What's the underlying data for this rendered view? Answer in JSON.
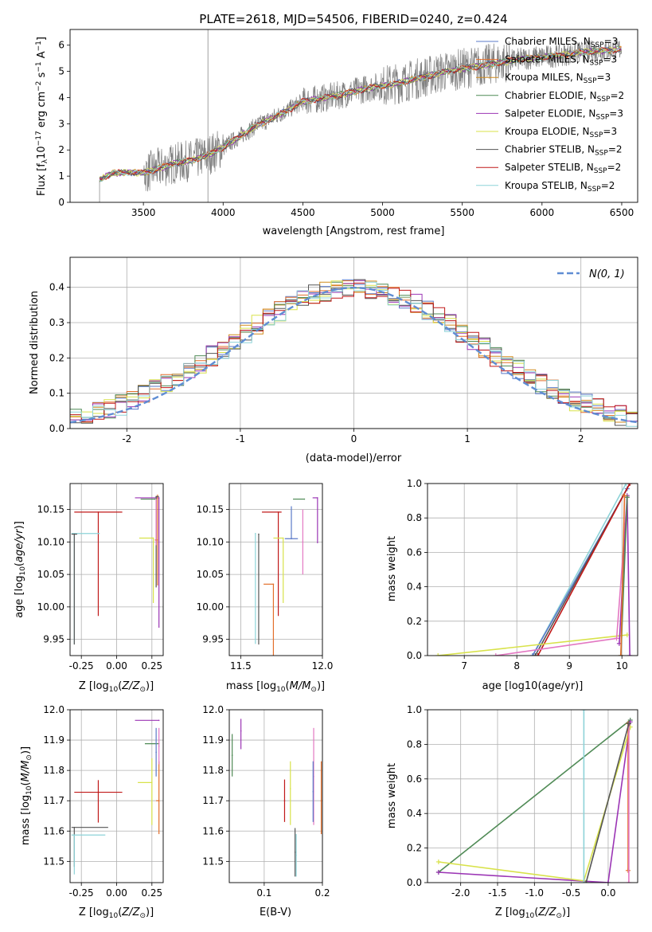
{
  "figure": {
    "title": "PLATE=2618, MJD=54506, FIBERID=0240, z=0.424"
  },
  "legend_labels": [
    {
      "name": "Chabrier MILES, N",
      "sub": "SSP",
      "suffix": "=3",
      "color": "#5b7ac8"
    },
    {
      "name": "Salpeter MILES, N",
      "sub": "SSP",
      "suffix": "=3",
      "color": "#e36f2b"
    },
    {
      "name": "Kroupa MILES, N",
      "sub": "SSP",
      "suffix": "=3",
      "color": "#d08a1c"
    },
    {
      "name": "Chabrier ELODIE, N",
      "sub": "SSP",
      "suffix": "=2",
      "color": "#4f8a55"
    },
    {
      "name": "Salpeter ELODIE, N",
      "sub": "SSP",
      "suffix": "=3",
      "color": "#9b35b5"
    },
    {
      "name": "Kroupa ELODIE, N",
      "sub": "SSP",
      "suffix": "=3",
      "color": "#d8e24a"
    },
    {
      "name": "Chabrier STELIB, N",
      "sub": "SSP",
      "suffix": "=2",
      "color": "#555555"
    },
    {
      "name": "Salpeter STELIB, N",
      "sub": "SSP",
      "suffix": "=2",
      "color": "#c01818"
    },
    {
      "name": "Kroupa STELIB, N",
      "sub": "SSP",
      "suffix": "=2",
      "color": "#8dd3d8"
    }
  ],
  "chart_data": [
    {
      "type": "line",
      "ylabel": "Flux [f_λ 10^-17 erg cm^-2 s^-1 A^-1]",
      "xlabel": "wavelength [Angstrom, rest frame]",
      "xlim": [
        3040,
        6600
      ],
      "ylim": [
        0,
        6.6
      ],
      "xticks": [
        3500,
        4000,
        4500,
        5000,
        5500,
        6000,
        6500
      ],
      "yticks": [
        0,
        1,
        2,
        3,
        4,
        5,
        6
      ],
      "data_color": "#808080",
      "vline": 3905,
      "model_curve": {
        "x": [
          3220,
          3300,
          3400,
          3500,
          3600,
          3700,
          3800,
          3900,
          4000,
          4100,
          4200,
          4300,
          4400,
          4500,
          4600,
          4700,
          4800,
          4900,
          5000,
          5100,
          5200,
          5300,
          5400,
          5500,
          5600,
          5700,
          5800,
          5900,
          6000,
          6100,
          6200,
          6300,
          6400,
          6500
        ],
        "y": [
          0.85,
          1.1,
          1.15,
          1.12,
          1.3,
          1.5,
          1.6,
          1.8,
          2.1,
          2.5,
          2.9,
          3.2,
          3.5,
          3.85,
          3.95,
          4.05,
          4.2,
          4.35,
          4.45,
          4.55,
          4.7,
          4.85,
          5.0,
          5.1,
          5.2,
          5.3,
          5.4,
          5.5,
          5.55,
          5.6,
          5.7,
          5.75,
          5.8,
          5.85
        ]
      }
    },
    {
      "type": "histogram",
      "xlabel": "(data-model)/error",
      "ylabel": "Normed distribution",
      "xlim": [
        -2.5,
        2.5
      ],
      "ylim": [
        0,
        0.485
      ],
      "xticks": [
        -2,
        -1,
        0,
        1,
        2
      ],
      "yticks": [
        0.0,
        0.1,
        0.2,
        0.3,
        0.4
      ],
      "reference_label": "N(0, 1)",
      "reference_color": "#5f8dd3",
      "bin_width": 0.1
    },
    {
      "type": "errorbar",
      "xlabel": "Z [log10(Z/Z⊙)]",
      "ylabel": "age  [log10(age/yr)]",
      "xlim": [
        -0.33,
        0.33
      ],
      "ylim": [
        9.925,
        10.19
      ],
      "xticks": [
        -0.25,
        0.0,
        0.25
      ],
      "yticks": [
        9.95,
        10.0,
        10.05,
        10.1,
        10.15
      ],
      "points": [
        {
          "x": -0.13,
          "y": 10.146,
          "xerr": [
            0.17,
            0.17
          ],
          "yerr": [
            0.16,
            0.0
          ],
          "color": "#c01818"
        },
        {
          "x": -0.3,
          "y": 10.113,
          "xerr": [
            0.02,
            0.18
          ],
          "yerr": [
            0.17,
            0.0
          ],
          "color": "#8dd3d8"
        },
        {
          "x": -0.3,
          "y": 10.112,
          "xerr": [
            0.02,
            0.02
          ],
          "yerr": [
            0.17,
            0.0
          ],
          "color": "#555555"
        },
        {
          "x": 0.3,
          "y": 10.168,
          "xerr": [
            0.17,
            0.0
          ],
          "yerr": [
            0.2,
            0.0
          ],
          "color": "#9b35b5"
        },
        {
          "x": 0.27,
          "y": 10.166,
          "xerr": [
            0.1,
            0.0
          ],
          "yerr": [
            0.0,
            0.0
          ],
          "color": "#4f8a55"
        },
        {
          "x": 0.26,
          "y": 10.106,
          "xerr": [
            0.1,
            0.0
          ],
          "yerr": [
            0.1,
            0.0
          ],
          "color": "#d8e24a"
        },
        {
          "x": 0.29,
          "y": 10.103,
          "xerr": [
            0.02,
            0.0
          ],
          "yerr": [
            0.07,
            0.07
          ],
          "color": "#e36f2b"
        },
        {
          "x": 0.28,
          "y": 10.17,
          "xerr": [
            0.0,
            0.02
          ],
          "yerr": [
            0.14,
            0.0
          ],
          "color": "#555555"
        },
        {
          "x": 0.28,
          "y": 10.165,
          "xerr": [
            0.0,
            0.0
          ],
          "yerr": [
            0.07,
            0.0
          ],
          "color": "#e377c2"
        }
      ]
    },
    {
      "type": "errorbar",
      "xlabel": "mass [log10(M/M⊙)]",
      "ylabel": "",
      "xlim": [
        11.43,
        12.0
      ],
      "ylim": [
        9.925,
        10.19
      ],
      "xticks": [
        11.5,
        12.0
      ],
      "yticks": [
        9.95,
        10.0,
        10.05,
        10.1,
        10.15
      ],
      "points": [
        {
          "x": 11.73,
          "y": 10.146,
          "xerr": [
            0.1,
            0.02
          ],
          "yerr": [
            0.16,
            0.0
          ],
          "color": "#c01818"
        },
        {
          "x": 11.59,
          "y": 10.113,
          "xerr": [
            0.0,
            0.0
          ],
          "yerr": [
            0.17,
            0.0
          ],
          "color": "#8dd3d8"
        },
        {
          "x": 11.61,
          "y": 10.112,
          "xerr": [
            0.0,
            0.0
          ],
          "yerr": [
            0.17,
            0.0
          ],
          "color": "#555555"
        },
        {
          "x": 11.97,
          "y": 10.168,
          "xerr": [
            0.03,
            0.0
          ],
          "yerr": [
            0.07,
            0.0
          ],
          "color": "#9b35b5"
        },
        {
          "x": 11.89,
          "y": 10.166,
          "xerr": [
            0.07,
            0.0
          ],
          "yerr": [
            0.0,
            0.0
          ],
          "color": "#4f8a55"
        },
        {
          "x": 11.76,
          "y": 10.106,
          "xerr": [
            0.06,
            0.0
          ],
          "yerr": [
            0.1,
            0.0
          ],
          "color": "#d8e24a"
        },
        {
          "x": 11.7,
          "y": 10.035,
          "xerr": [
            0.06,
            0.0
          ],
          "yerr": [
            0.11,
            0.0
          ],
          "color": "#e36f2b"
        },
        {
          "x": 11.81,
          "y": 10.105,
          "xerr": [
            0.04,
            0.04
          ],
          "yerr": [
            0.0,
            0.05
          ],
          "color": "#5b7ac8"
        },
        {
          "x": 11.88,
          "y": 10.1,
          "xerr": [
            0.0,
            0.0
          ],
          "yerr": [
            0.05,
            0.05
          ],
          "color": "#e377c2"
        }
      ]
    },
    {
      "type": "line",
      "xlabel": "age  [log10(age/yr)]",
      "ylabel": "mass weight",
      "xlim": [
        6.3,
        10.3
      ],
      "ylim": [
        0.0,
        1.0
      ],
      "xticks": [
        7,
        8,
        9,
        10
      ],
      "yticks": [
        0.0,
        0.2,
        0.4,
        0.6,
        0.8,
        1.0
      ],
      "series": [
        {
          "x": [
            8.3,
            10.08
          ],
          "y": [
            0.0,
            1.0
          ],
          "color": "#8dd3d8"
        },
        {
          "x": [
            8.3,
            10.1
          ],
          "y": [
            0.0,
            0.97
          ],
          "color": "#5b7ac8"
        },
        {
          "x": [
            8.35,
            10.15
          ],
          "y": [
            0.0,
            1.0
          ],
          "color": "#555555"
        },
        {
          "x": [
            8.4,
            10.15
          ],
          "y": [
            0.0,
            1.0
          ],
          "color": "#c01818"
        },
        {
          "x": [
            6.5,
            10.1
          ],
          "y": [
            0.0,
            0.12
          ],
          "color": "#d8e24a"
        },
        {
          "x": [
            7.6,
            9.9,
            10.1
          ],
          "y": [
            0.0,
            0.1,
            0.92
          ],
          "color": "#e377c2"
        },
        {
          "x": [
            9.95,
            10.1,
            10.15
          ],
          "y": [
            0.07,
            0.93,
            0.0
          ],
          "color": "#9b35b5"
        },
        {
          "x": [
            9.98,
            10.1
          ],
          "y": [
            0.0,
            0.92
          ],
          "color": "#4f8a55"
        },
        {
          "x": [
            9.98,
            10.05
          ],
          "y": [
            0.0,
            0.93
          ],
          "color": "#e36f2b"
        }
      ]
    },
    {
      "type": "errorbar",
      "xlabel": "Z [log10(Z/Z⊙)]",
      "ylabel": "mass [log10(M/M⊙)]",
      "xlim": [
        -0.33,
        0.33
      ],
      "ylim": [
        11.43,
        12.0
      ],
      "xticks": [
        -0.25,
        0.0,
        0.25
      ],
      "yticks": [
        11.5,
        11.6,
        11.7,
        11.8,
        11.9,
        12.0
      ],
      "points": [
        {
          "x": -0.13,
          "y": 11.728,
          "xerr": [
            0.17,
            0.17
          ],
          "yerr": [
            0.1,
            0.04
          ],
          "color": "#c01818"
        },
        {
          "x": -0.3,
          "y": 11.612,
          "xerr": [
            0.02,
            0.24
          ],
          "yerr": [
            0.13,
            0.0
          ],
          "color": "#555555"
        },
        {
          "x": -0.3,
          "y": 11.587,
          "xerr": [
            0.02,
            0.22
          ],
          "yerr": [
            0.13,
            0.0
          ],
          "color": "#8dd3d8"
        },
        {
          "x": 0.3,
          "y": 11.965,
          "xerr": [
            0.17,
            0.0
          ],
          "yerr": [
            0.0,
            0.0
          ],
          "color": "#9b35b5"
        },
        {
          "x": 0.3,
          "y": 11.888,
          "xerr": [
            0.1,
            0.0
          ],
          "yerr": [
            0.0,
            0.0
          ],
          "color": "#4f8a55"
        },
        {
          "x": 0.25,
          "y": 11.76,
          "xerr": [
            0.1,
            0.0
          ],
          "yerr": [
            0.14,
            0.08
          ],
          "color": "#d8e24a"
        },
        {
          "x": 0.3,
          "y": 11.7,
          "xerr": [
            0.02,
            0.0
          ],
          "yerr": [
            0.11,
            0.13
          ],
          "color": "#e36f2b"
        },
        {
          "x": 0.28,
          "y": 11.86,
          "xerr": [
            0.0,
            0.0
          ],
          "yerr": [
            0.08,
            0.08
          ],
          "color": "#5b7ac8"
        },
        {
          "x": 0.3,
          "y": 11.88,
          "xerr": [
            0.0,
            0.0
          ],
          "yerr": [
            0.06,
            0.06
          ],
          "color": "#e377c2"
        }
      ]
    },
    {
      "type": "errorbar",
      "xlabel": "E(B-V)",
      "ylabel": "",
      "xlim": [
        0.04,
        0.2
      ],
      "ylim": [
        11.43,
        12.0
      ],
      "xticks": [
        0.1,
        0.2
      ],
      "yticks": [
        11.5,
        11.6,
        11.7,
        11.8,
        11.9,
        12.0
      ],
      "points": [
        {
          "x": 0.06,
          "y": 11.93,
          "xerr": [
            0.0,
            0.0
          ],
          "yerr": [
            0.06,
            0.04
          ],
          "color": "#9b35b5"
        },
        {
          "x": 0.045,
          "y": 11.85,
          "xerr": [
            0.0,
            0.0
          ],
          "yerr": [
            0.07,
            0.07
          ],
          "color": "#4f8a55"
        },
        {
          "x": 0.135,
          "y": 11.7,
          "xerr": [
            0.0,
            0.0
          ],
          "yerr": [
            0.07,
            0.07
          ],
          "color": "#c01818"
        },
        {
          "x": 0.153,
          "y": 11.53,
          "xerr": [
            0.0,
            0.0
          ],
          "yerr": [
            0.08,
            0.08
          ],
          "color": "#555555"
        },
        {
          "x": 0.155,
          "y": 11.52,
          "xerr": [
            0.0,
            0.0
          ],
          "yerr": [
            0.07,
            0.07
          ],
          "color": "#8dd3d8"
        },
        {
          "x": 0.145,
          "y": 11.74,
          "xerr": [
            0.0,
            0.0
          ],
          "yerr": [
            0.12,
            0.09
          ],
          "color": "#d8e24a"
        },
        {
          "x": 0.198,
          "y": 11.7,
          "xerr": [
            0.0,
            0.0
          ],
          "yerr": [
            0.11,
            0.13
          ],
          "color": "#e36f2b"
        },
        {
          "x": 0.185,
          "y": 11.78,
          "xerr": [
            0.0,
            0.0
          ],
          "yerr": [
            0.16,
            0.16
          ],
          "color": "#e377c2"
        },
        {
          "x": 0.184,
          "y": 11.73,
          "xerr": [
            0.0,
            0.0
          ],
          "yerr": [
            0.1,
            0.1
          ],
          "color": "#5b7ac8"
        }
      ]
    },
    {
      "type": "line",
      "xlabel": "Z [log10(Z/Z⊙)]",
      "ylabel": "mass weight",
      "xlim": [
        -2.45,
        0.4
      ],
      "ylim": [
        0.0,
        1.0
      ],
      "xticks": [
        -2.0,
        -1.5,
        -1.0,
        -0.5,
        0.0
      ],
      "yticks": [
        0.0,
        0.2,
        0.4,
        0.6,
        0.8,
        1.0
      ],
      "series": [
        {
          "x": [
            -2.3,
            0.3
          ],
          "y": [
            0.06,
            0.94
          ],
          "color": "#4f8a55"
        },
        {
          "x": [
            -2.3,
            0.0,
            0.3
          ],
          "y": [
            0.06,
            0.0,
            0.93
          ],
          "color": "#9b35b5"
        },
        {
          "x": [
            -2.3,
            -0.33,
            0.3
          ],
          "y": [
            0.12,
            0.01,
            0.9
          ],
          "color": "#d8e24a"
        },
        {
          "x": [
            -0.33,
            -0.33
          ],
          "y": [
            0.0,
            1.0
          ],
          "color": "#8dd3d8"
        },
        {
          "x": [
            0.27,
            0.27
          ],
          "y": [
            0.07,
            0.92
          ],
          "color": "#e36f2b"
        },
        {
          "x": [
            0.28,
            0.28
          ],
          "y": [
            0.0,
            0.92
          ],
          "color": "#e377c2"
        },
        {
          "x": [
            -0.3,
            0.28
          ],
          "y": [
            0.0,
            0.92
          ],
          "color": "#555555"
        }
      ]
    }
  ]
}
